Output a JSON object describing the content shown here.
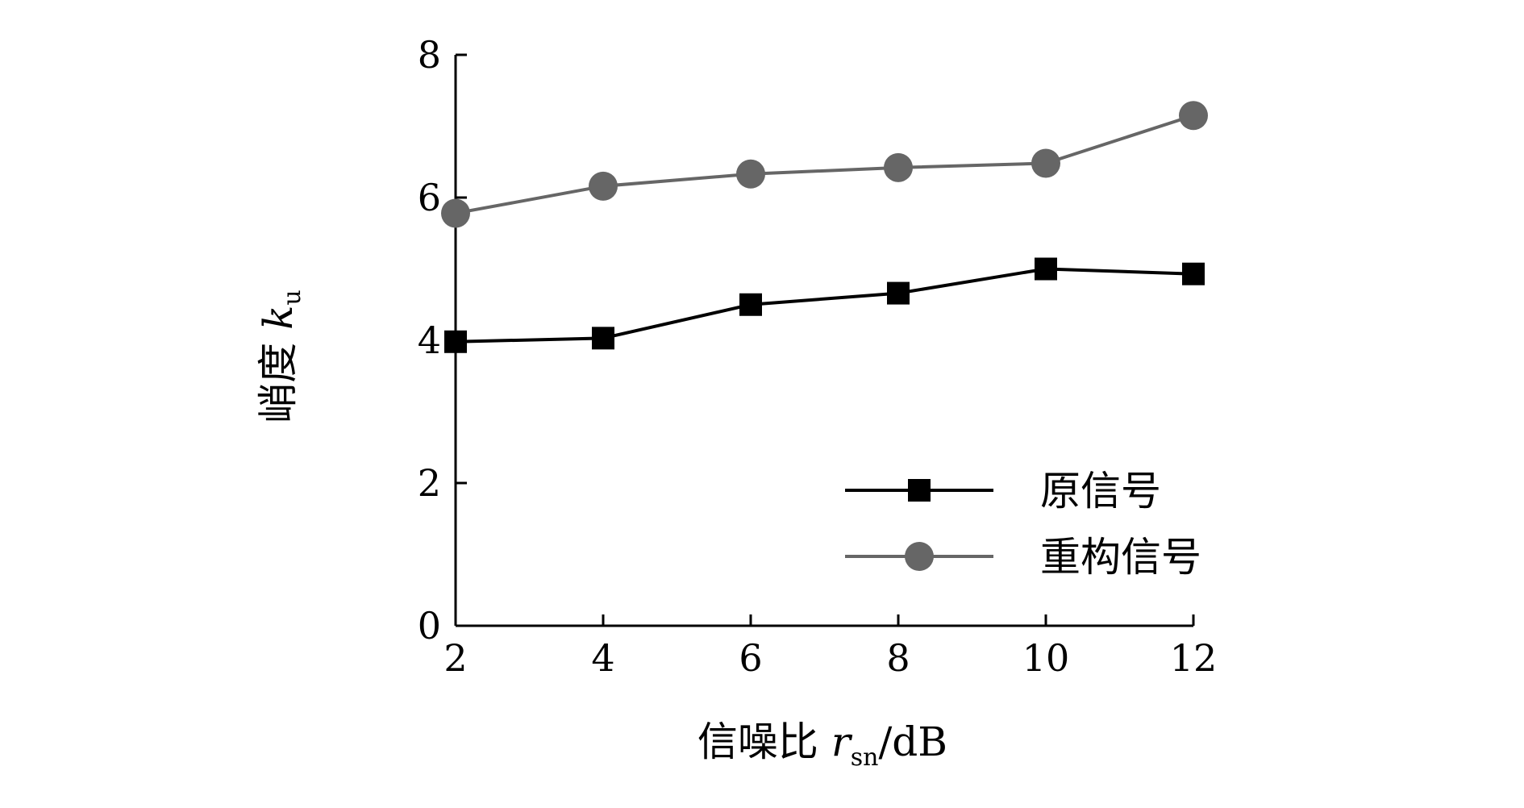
{
  "chart_data": {
    "type": "line",
    "x": [
      2,
      4,
      6,
      8,
      10,
      12
    ],
    "xlim": [
      2,
      12
    ],
    "ylim": [
      0,
      8
    ],
    "x_ticks": [
      "2",
      "4",
      "6",
      "8",
      "10",
      "12"
    ],
    "y_ticks": [
      "0",
      "2",
      "4",
      "6",
      "8"
    ],
    "xlabel": {
      "text": "信噪比 ",
      "var": "r",
      "sub": "sn",
      "unit": "/dB"
    },
    "ylabel": {
      "text": "峭度 ",
      "var": "k",
      "sub": "u"
    },
    "legend_position": "lower-right",
    "grid": false,
    "series": [
      {
        "name": "原信号",
        "values": [
          3.98,
          4.03,
          4.5,
          4.66,
          5.0,
          4.93
        ],
        "color": "#000000",
        "marker": "square"
      },
      {
        "name": "重构信号",
        "values": [
          5.78,
          6.16,
          6.33,
          6.42,
          6.48,
          7.15
        ],
        "color": "#666666",
        "marker": "circle"
      }
    ]
  }
}
